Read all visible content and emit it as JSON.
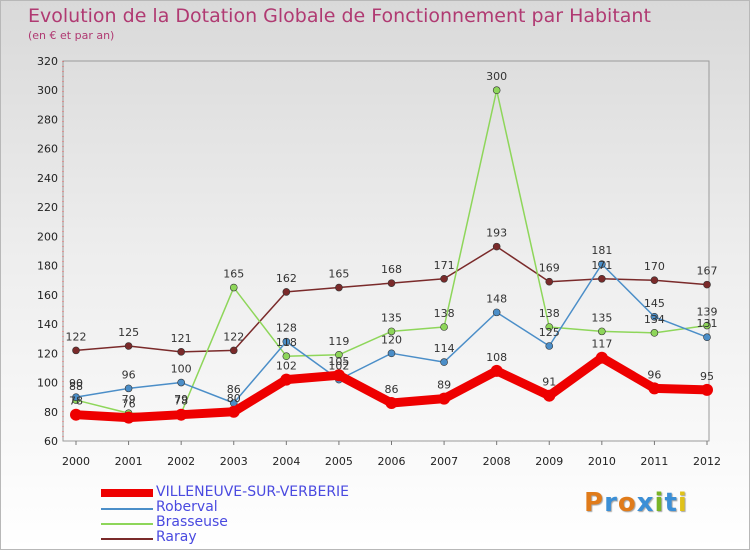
{
  "header": {
    "title": "Evolution de la Dotation Globale de Fonctionnement par Habitant",
    "subtitle": "(en € et par an)"
  },
  "logo": {
    "text": "Proxiti",
    "colors": [
      "#e07b1a",
      "#3b8fd6",
      "#e07b1a",
      "#3b8fd6",
      "#7ab526",
      "#3b8fd6",
      "#e0c21a"
    ]
  },
  "chart_data": {
    "type": "line",
    "title": "Evolution de la Dotation Globale de Fonctionnement par Habitant",
    "subtitle": "(en € et par an)",
    "x": [
      "2000",
      "2001",
      "2002",
      "2003",
      "2004",
      "2005",
      "2006",
      "2007",
      "2008",
      "2009",
      "2010",
      "2011",
      "2012"
    ],
    "yticks": [
      "60",
      "80",
      "100",
      "120",
      "140",
      "160",
      "180",
      "200",
      "220",
      "240",
      "260",
      "280",
      "300",
      "320"
    ],
    "ylim": [
      60,
      320
    ],
    "grid": false,
    "legend_position": "bottom-left",
    "series": [
      {
        "name": "Raray",
        "color": "#7a2a2a",
        "values": [
          122,
          125,
          121,
          122,
          162,
          165,
          168,
          171,
          193,
          169,
          171,
          170,
          167
        ],
        "labels": [
          "122",
          "125",
          "121",
          "122",
          "162",
          "165",
          "168",
          "171",
          "193",
          "169",
          "171",
          "170",
          "167"
        ]
      },
      {
        "name": "Brasseuse",
        "color": "#8ed65a",
        "values": [
          88,
          79,
          79,
          165,
          118,
          119,
          135,
          138,
          300,
          138,
          135,
          134,
          139
        ],
        "labels": [
          "88",
          "79",
          "79",
          "165",
          "118",
          "119",
          "135",
          "138",
          "300",
          "138",
          "135",
          "134",
          "139"
        ]
      },
      {
        "name": "Roberval",
        "color": "#4b8ec8",
        "values": [
          90,
          96,
          100,
          86,
          128,
          102,
          120,
          114,
          148,
          125,
          181,
          145,
          131
        ],
        "labels": [
          "90",
          "96",
          "100",
          "86",
          "128",
          "102",
          "120",
          "114",
          "148",
          "125",
          "181",
          "145",
          "131"
        ]
      },
      {
        "name": "VILLENEUVE-SUR-VERBERIE",
        "color": "#ee0000",
        "values": [
          78,
          76,
          78,
          80,
          102,
          105,
          86,
          89,
          108,
          91,
          117,
          96,
          95
        ],
        "labels": [
          "78",
          "76",
          "78",
          "80",
          "102",
          "105",
          "86",
          "89",
          "108",
          "91",
          "117",
          "96",
          "95"
        ]
      }
    ],
    "legend": [
      "VILLENEUVE-SUR-VERBERIE",
      "Roberval",
      "Brasseuse",
      "Raray"
    ]
  }
}
